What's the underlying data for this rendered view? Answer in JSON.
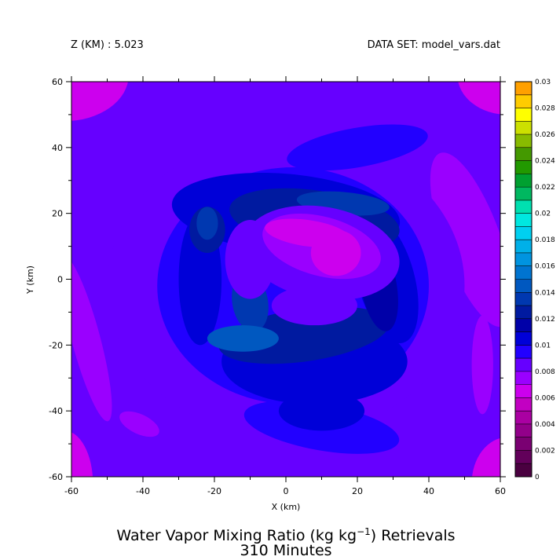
{
  "header": {
    "left": "Z (KM) : 5.023",
    "right": "DATA SET: model_vars.dat"
  },
  "chart_data": {
    "type": "heatmap",
    "title_line1": "Water Vapor Mixing Ratio (kg kg",
    "title_sup": "−1",
    "title_line1_end": ") Retrievals",
    "title_line2": "310 Minutes",
    "xlabel": "X (km)",
    "ylabel": "Y (km)",
    "xlim": [
      -60,
      60
    ],
    "ylim": [
      -60,
      60
    ],
    "xticks": [
      "-60",
      "-40",
      "-20",
      "0",
      "20",
      "40",
      "60"
    ],
    "yticks": [
      "-60",
      "-40",
      "-20",
      "0",
      "20",
      "40",
      "60"
    ],
    "x_tick_values": [
      -60,
      -40,
      -20,
      0,
      20,
      40,
      60
    ],
    "y_tick_values": [
      -60,
      -40,
      -20,
      0,
      20,
      40,
      60
    ],
    "colorbar": {
      "min": 0,
      "max": 0.03,
      "step": 0.001,
      "labels": [
        "0",
        "0.002",
        "0.004",
        "0.006",
        "0.008",
        "0.01",
        "0.012",
        "0.014",
        "0.016",
        "0.018",
        "0.02",
        "0.022",
        "0.024",
        "0.026",
        "0.028",
        "0.03"
      ],
      "label_values": [
        0,
        0.002,
        0.004,
        0.006,
        0.008,
        0.01,
        0.012,
        0.014,
        0.016,
        0.018,
        0.02,
        0.022,
        0.024,
        0.026,
        0.028,
        0.03
      ],
      "colors": [
        "#4a0040",
        "#62005a",
        "#7a0072",
        "#92008a",
        "#aa00a2",
        "#c200c2",
        "#cc00ee",
        "#9a00ff",
        "#6600ff",
        "#2200ff",
        "#0000d8",
        "#0000a8",
        "#001aa0",
        "#0038b0",
        "#0058c0",
        "#0074d0",
        "#0094e0",
        "#00b0e8",
        "#00d0f0",
        "#00e8e0",
        "#00e0b0",
        "#00b860",
        "#00a030",
        "#229900",
        "#449900",
        "#88bb00",
        "#cce000",
        "#ffff00",
        "#ffcc00",
        "#ffa000",
        "#ff7000",
        "#ff4000",
        "#ff0000",
        "#d00000",
        "#a00000",
        "#700000"
      ]
    },
    "field": {
      "background": 0.008,
      "features": [
        {
          "name": "corner-nw",
          "cx": -62,
          "cy": 62,
          "rx": 18,
          "ry": 14,
          "rot": 0,
          "value": 0.0065
        },
        {
          "name": "corner-ne",
          "cx": 62,
          "cy": 62,
          "rx": 14,
          "ry": 12,
          "rot": 0,
          "value": 0.0065
        },
        {
          "name": "corner-sw",
          "cx": -62,
          "cy": -62,
          "rx": 8,
          "ry": 16,
          "rot": 0,
          "value": 0.0068
        },
        {
          "name": "corner-se",
          "cx": 62,
          "cy": -62,
          "rx": 10,
          "ry": 14,
          "rot": 0,
          "value": 0.0068
        },
        {
          "name": "band-west",
          "cx": -56,
          "cy": -18,
          "rx": 4,
          "ry": 26,
          "rot": 15,
          "value": 0.0075
        },
        {
          "name": "band-east",
          "cx": 52,
          "cy": 12,
          "rx": 8,
          "ry": 28,
          "rot": 20,
          "value": 0.0072
        },
        {
          "name": "blob-sw",
          "cx": -41,
          "cy": -44,
          "rx": 6,
          "ry": 3,
          "rot": -25,
          "value": 0.007
        },
        {
          "name": "blob-east",
          "cx": 55,
          "cy": -26,
          "rx": 3,
          "ry": 15,
          "rot": 0,
          "value": 0.0075
        },
        {
          "name": "ring-outer",
          "cx": 0,
          "cy": -2,
          "rx": 50,
          "ry": 46,
          "rot": 0,
          "value": 0.0088
        },
        {
          "name": "ring-inner",
          "cx": 2,
          "cy": -2,
          "rx": 38,
          "ry": 36,
          "rot": 0,
          "value": 0.0095
        },
        {
          "name": "tongue-ne",
          "cx": 20,
          "cy": 40,
          "rx": 20,
          "ry": 6,
          "rot": 10,
          "value": 0.0092
        },
        {
          "name": "tongue-s",
          "cx": 10,
          "cy": -45,
          "rx": 22,
          "ry": 7,
          "rot": -10,
          "value": 0.0093
        },
        {
          "name": "arc-north",
          "cx": 0,
          "cy": 20,
          "rx": 32,
          "ry": 12,
          "rot": -5,
          "value": 0.0103
        },
        {
          "name": "arc-west",
          "cx": -24,
          "cy": 0,
          "rx": 6,
          "ry": 20,
          "rot": 0,
          "value": 0.0103
        },
        {
          "name": "arc-south",
          "cx": 8,
          "cy": -25,
          "rx": 26,
          "ry": 13,
          "rot": 0,
          "value": 0.0108
        },
        {
          "name": "arc-east",
          "cx": 28,
          "cy": 0,
          "rx": 8,
          "ry": 20,
          "rot": 15,
          "value": 0.0103
        },
        {
          "name": "arc-south-blob",
          "cx": 10,
          "cy": -40,
          "rx": 12,
          "ry": 6,
          "rot": 0,
          "value": 0.0105
        },
        {
          "name": "band-n",
          "cx": 8,
          "cy": 18,
          "rx": 24,
          "ry": 9,
          "rot": -8,
          "value": 0.012
        },
        {
          "name": "band-w",
          "cx": -22,
          "cy": 15,
          "rx": 5,
          "ry": 7,
          "rot": 0,
          "value": 0.012
        },
        {
          "name": "band-s",
          "cx": 5,
          "cy": -17,
          "rx": 24,
          "ry": 8,
          "rot": 8,
          "value": 0.0128
        },
        {
          "name": "band-e",
          "cx": 26,
          "cy": -2,
          "rx": 5,
          "ry": 14,
          "rot": 10,
          "value": 0.0118
        },
        {
          "name": "cyan-hook",
          "cx": -10,
          "cy": -7,
          "rx": 5,
          "ry": 9,
          "rot": 10,
          "value": 0.0132
        },
        {
          "name": "cyan-core",
          "cx": -12,
          "cy": -18,
          "rx": 10,
          "ry": 4,
          "rot": 0,
          "value": 0.0148
        },
        {
          "name": "cyan-blob-sw",
          "cx": -22,
          "cy": 17,
          "rx": 3,
          "ry": 5,
          "rot": 0,
          "value": 0.0138
        },
        {
          "name": "cyan-arc-n",
          "cx": 16,
          "cy": 23,
          "rx": 13,
          "ry": 3.5,
          "rot": -5,
          "value": 0.0135
        },
        {
          "name": "dry-center",
          "cx": 10,
          "cy": 8,
          "rx": 22,
          "ry": 14,
          "rot": -10,
          "value": 0.008
        },
        {
          "name": "dry-tail",
          "cx": -10,
          "cy": 6,
          "rx": 7,
          "ry": 12,
          "rot": 0,
          "value": 0.0082
        },
        {
          "name": "dry-south",
          "cx": 8,
          "cy": -8,
          "rx": 12,
          "ry": 6,
          "rot": 0,
          "value": 0.0083
        },
        {
          "name": "dry-inner-1",
          "cx": 10,
          "cy": 10,
          "rx": 17,
          "ry": 9,
          "rot": -15,
          "value": 0.007
        },
        {
          "name": "dry-inner-2",
          "cx": 6,
          "cy": 14,
          "rx": 12,
          "ry": 4,
          "rot": -8,
          "value": 0.0062
        },
        {
          "name": "dry-inner-3",
          "cx": 14,
          "cy": 8,
          "rx": 7,
          "ry": 7,
          "rot": 0,
          "value": 0.0066
        }
      ]
    }
  }
}
